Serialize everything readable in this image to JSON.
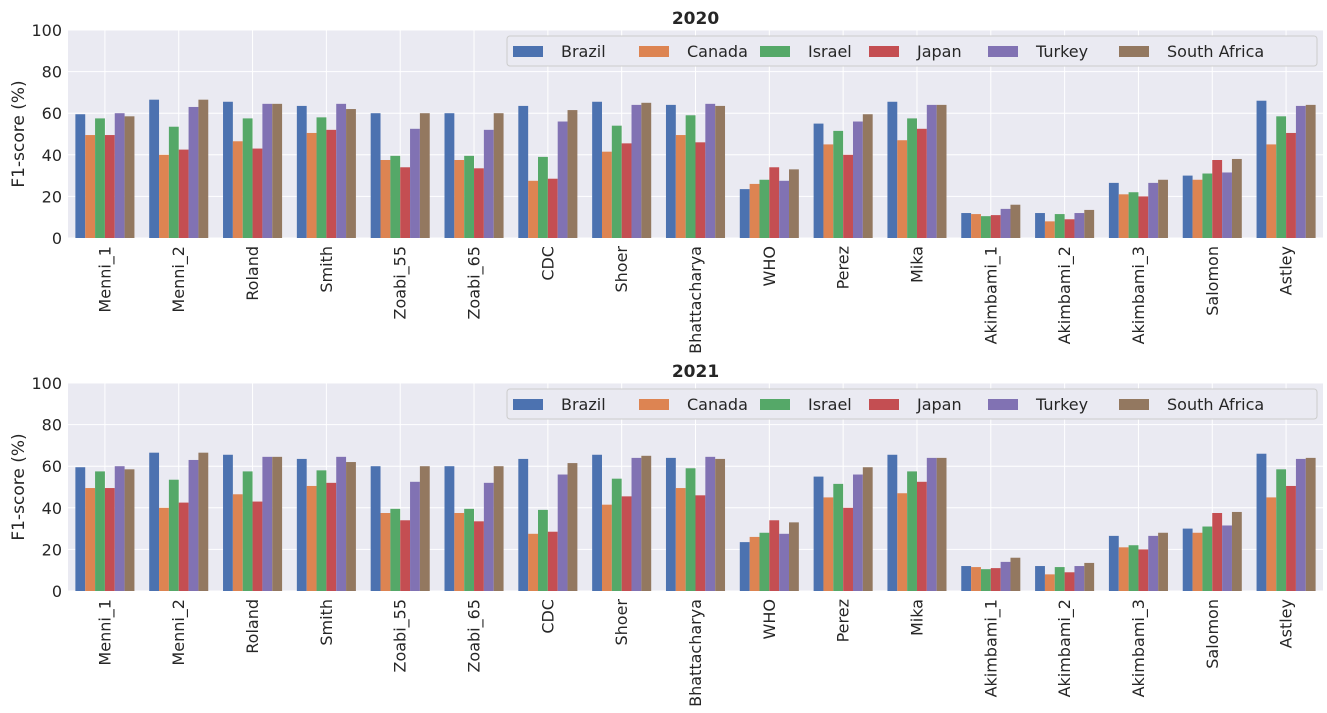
{
  "figure": {
    "colors": {
      "Brazil": "#4c72b0",
      "Canada": "#dd8452",
      "Israel": "#55a868",
      "Japan": "#c44e52",
      "Turkey": "#8172b3",
      "South Africa": "#937860"
    },
    "background": "#eaeaf2",
    "grid_color": "#ffffff"
  },
  "chart_data": [
    {
      "type": "bar",
      "title": "2020",
      "ylabel": "F1-score (%)",
      "ylim": [
        0,
        100
      ],
      "yticks": [
        "0",
        "20",
        "40",
        "60",
        "80",
        "100"
      ],
      "grid": true,
      "legend_placement": "top-right",
      "categories": [
        "Menni_1",
        "Menni_2",
        "Roland",
        "Smith",
        "Zoabi_55",
        "Zoabi_65",
        "CDC",
        "Shoer",
        "Bhattacharya",
        "WHO",
        "Perez",
        "Mika",
        "Akimbami_1",
        "Akimbami_2",
        "Akimbami_3",
        "Salomon",
        "Astley"
      ],
      "series": [
        {
          "name": "Brazil",
          "values": [
            59.5,
            66.5,
            65.5,
            63.5,
            60,
            60,
            63.5,
            65.5,
            64,
            23.5,
            55,
            65.5,
            12,
            12,
            26.5,
            30,
            66
          ]
        },
        {
          "name": "Canada",
          "values": [
            49.5,
            40,
            46.5,
            50.5,
            37.5,
            37.5,
            27.5,
            41.5,
            49.5,
            26,
            45,
            47,
            11.5,
            8,
            21,
            28,
            45
          ]
        },
        {
          "name": "Israel",
          "values": [
            57.5,
            53.5,
            57.5,
            58,
            39.5,
            39.5,
            39,
            54,
            59,
            28,
            51.5,
            57.5,
            10.5,
            11.5,
            22,
            31,
            58.5
          ]
        },
        {
          "name": "Japan",
          "values": [
            49.5,
            42.5,
            43,
            52,
            34,
            33.5,
            28.5,
            45.5,
            46,
            34,
            40,
            52.5,
            11,
            9,
            20,
            37.5,
            50.5
          ]
        },
        {
          "name": "Turkey",
          "values": [
            60,
            63,
            64.5,
            64.5,
            52.5,
            52,
            56,
            64,
            64.5,
            27.5,
            56,
            64,
            14,
            12,
            26.5,
            31.5,
            63.5
          ]
        },
        {
          "name": "South Africa",
          "values": [
            58.5,
            66.5,
            64.5,
            62,
            60,
            60,
            61.5,
            65,
            63.5,
            33,
            59.5,
            64,
            16,
            13.5,
            28,
            38,
            64
          ]
        }
      ]
    },
    {
      "type": "bar",
      "title": "2021",
      "ylabel": "F1-score (%)",
      "ylim": [
        0,
        100
      ],
      "yticks": [
        "0",
        "20",
        "40",
        "60",
        "80",
        "100"
      ],
      "grid": true,
      "legend_placement": "top-right",
      "categories": [
        "Menni_1",
        "Menni_2",
        "Roland",
        "Smith",
        "Zoabi_55",
        "Zoabi_65",
        "CDC",
        "Shoer",
        "Bhattacharya",
        "WHO",
        "Perez",
        "Mika",
        "Akimbami_1",
        "Akimbami_2",
        "Akimbami_3",
        "Salomon",
        "Astley"
      ],
      "series": [
        {
          "name": "Brazil",
          "values": [
            59.5,
            66.5,
            65.5,
            63.5,
            60,
            60,
            63.5,
            65.5,
            64,
            23.5,
            55,
            65.5,
            12,
            12,
            26.5,
            30,
            66
          ]
        },
        {
          "name": "Canada",
          "values": [
            49.5,
            40,
            46.5,
            50.5,
            37.5,
            37.5,
            27.5,
            41.5,
            49.5,
            26,
            45,
            47,
            11.5,
            8,
            21,
            28,
            45
          ]
        },
        {
          "name": "Israel",
          "values": [
            57.5,
            53.5,
            57.5,
            58,
            39.5,
            39.5,
            39,
            54,
            59,
            28,
            51.5,
            57.5,
            10.5,
            11.5,
            22,
            31,
            58.5
          ]
        },
        {
          "name": "Japan",
          "values": [
            49.5,
            42.5,
            43,
            52,
            34,
            33.5,
            28.5,
            45.5,
            46,
            34,
            40,
            52.5,
            11,
            9,
            20,
            37.5,
            50.5
          ]
        },
        {
          "name": "Turkey",
          "values": [
            60,
            63,
            64.5,
            64.5,
            52.5,
            52,
            56,
            64,
            64.5,
            27.5,
            56,
            64,
            14,
            12,
            26.5,
            31.5,
            63.5
          ]
        },
        {
          "name": "South Africa",
          "values": [
            58.5,
            66.5,
            64.5,
            62,
            60,
            60,
            61.5,
            65,
            63.5,
            33,
            59.5,
            64,
            16,
            13.5,
            28,
            38,
            64
          ]
        }
      ]
    }
  ]
}
